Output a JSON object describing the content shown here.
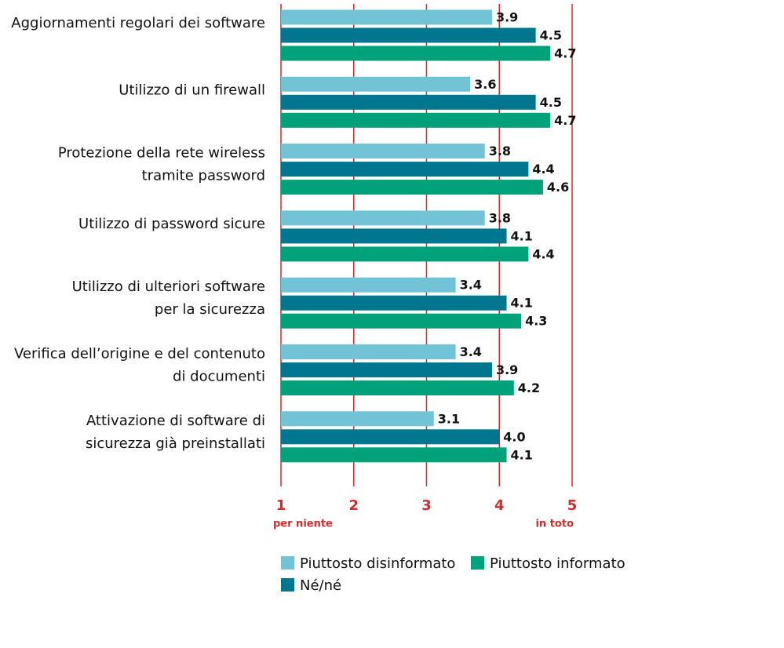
{
  "chart_data": {
    "type": "hbar",
    "categories": [
      "Aggiornamenti regolari dei software",
      "Utilizzo di un firewall",
      "Protezione della rete wireless\ntramite password",
      "Utilizzo di password sicure",
      "Utilizzo di ulteriori software\nper la sicurezza",
      "Verifica dell’origine e del contenuto\ndi documenti",
      "Attivazione di software di\nsicurezza già preinstallati"
    ],
    "series": [
      {
        "name": "Piuttosto disinformato",
        "color": "#72c3d5",
        "values": [
          3.9,
          3.6,
          3.8,
          3.8,
          3.4,
          3.4,
          3.1
        ],
        "value_labels": [
          "3.9",
          "3.6",
          "3.8",
          "3.8",
          "3.4",
          "3.4",
          "3.1"
        ]
      },
      {
        "name": "Né/né",
        "color": "#00768f",
        "values": [
          4.5,
          4.5,
          4.4,
          4.1,
          4.1,
          3.9,
          4.0
        ],
        "value_labels": [
          "4.5",
          "4.5",
          "4.4",
          "4.1",
          "4.1",
          "3.9",
          "4.0"
        ]
      },
      {
        "name": "Piuttosto informato",
        "color": "#00a27a",
        "values": [
          4.7,
          4.7,
          4.6,
          4.4,
          4.3,
          4.2,
          4.1
        ],
        "value_labels": [
          "4.7",
          "4.7",
          "4.6",
          "4.4",
          "4.3",
          "4.2",
          "4.1"
        ]
      }
    ],
    "xlim": [
      1,
      5
    ],
    "xticks": [
      1,
      2,
      3,
      4,
      5
    ],
    "x_min_label": "per niente",
    "x_max_label": "in toto",
    "grid": true,
    "grid_color": "#d62a2a"
  }
}
